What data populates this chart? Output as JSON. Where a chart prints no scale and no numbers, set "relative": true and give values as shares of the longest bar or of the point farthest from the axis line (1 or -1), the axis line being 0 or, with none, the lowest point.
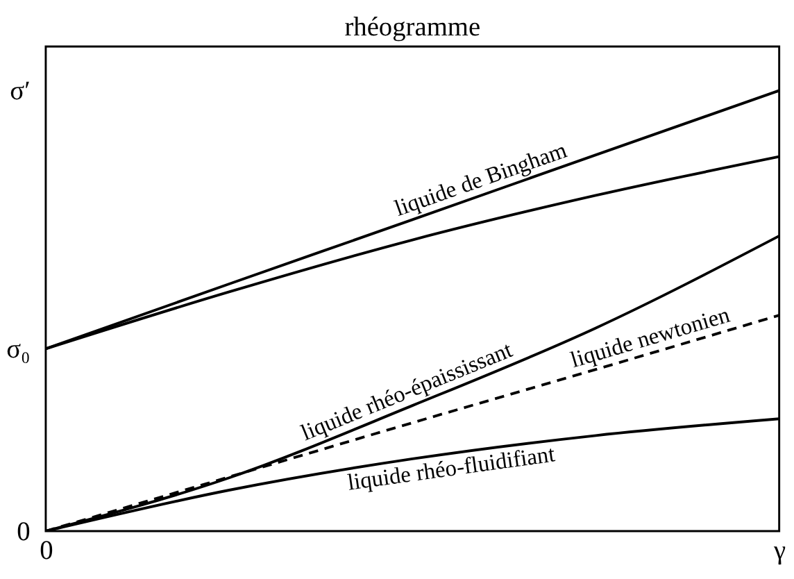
{
  "chart_data": {
    "type": "line",
    "title": "rhéogramme",
    "relative": true,
    "categories": [
      "0",
      null,
      null,
      null,
      "γ"
    ],
    "annotations": [
      "0",
      "σ₀",
      "σ′"
    ],
    "legend": false,
    "grid": false,
    "marker": "none",
    "series": [
      {
        "name": "liquide de Bingham",
        "color": "#000000",
        "line_style": "solid",
        "values": [
          0.414,
          0.561,
          0.707,
          0.854,
          1
        ]
      },
      {
        "color": "#000000",
        "line_style": "solid",
        "values": [
          0.414,
          0.543,
          0.661,
          0.762,
          0.85
        ]
      },
      {
        "name": "liquide rhéo-épaississant",
        "color": "#000000",
        "line_style": "solid",
        "values": [
          0,
          0.121,
          0.285,
          0.461,
          0.67
        ]
      },
      {
        "name": "liquide newtonien",
        "color": "#000000",
        "line_style": "dashed",
        "values": [
          0,
          0.123,
          0.246,
          0.367,
          0.49
        ]
      },
      {
        "name": "liquide rhéo-fluidifiant",
        "color": "#000000",
        "line_style": "solid",
        "values": [
          0,
          0.093,
          0.164,
          0.217,
          0.255
        ]
      }
    ]
  }
}
